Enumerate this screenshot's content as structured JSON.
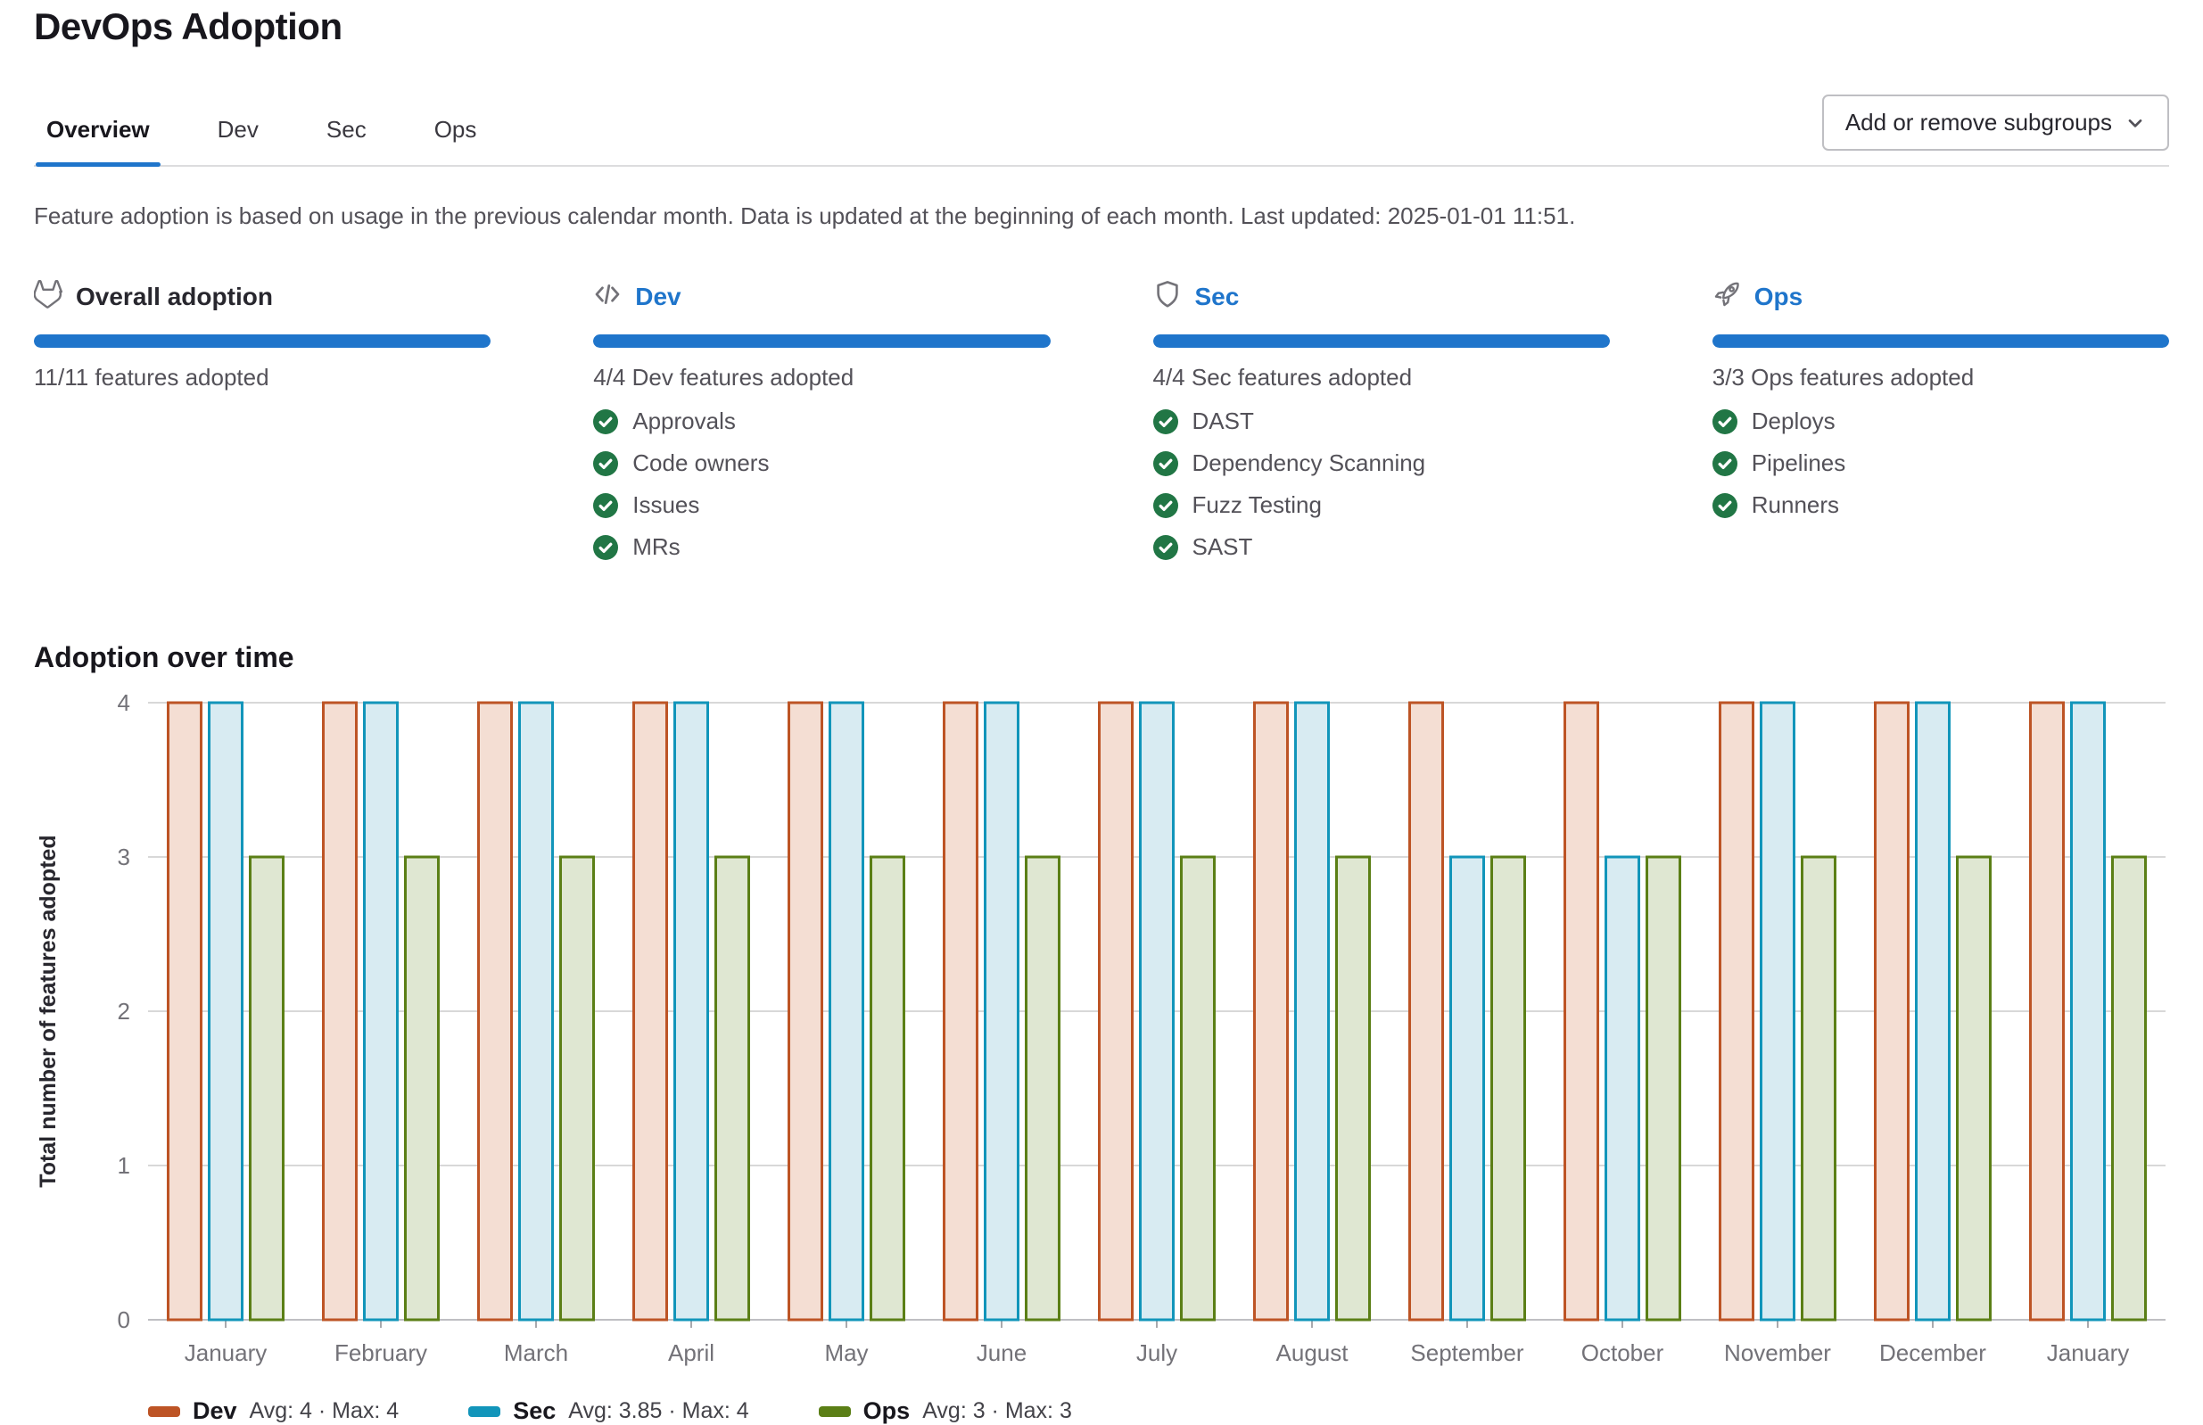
{
  "page": {
    "title": "DevOps Adoption"
  },
  "tabs": [
    {
      "label": "Overview",
      "active": true
    },
    {
      "label": "Dev",
      "active": false
    },
    {
      "label": "Sec",
      "active": false
    },
    {
      "label": "Ops",
      "active": false
    }
  ],
  "toolbar": {
    "subgroups_button": "Add or remove subgroups"
  },
  "description": "Feature adoption is based on usage in the previous calendar month. Data is updated at the beginning of each month. Last updated: 2025-01-01 11:51.",
  "adoption": {
    "columns": [
      {
        "id": "overall",
        "icon": "tanuki-icon",
        "title": "Overall adoption",
        "is_link": false,
        "progress_percent": 100,
        "summary": "11/11 features adopted",
        "features": []
      },
      {
        "id": "dev",
        "icon": "code-icon",
        "title": "Dev",
        "is_link": true,
        "progress_percent": 100,
        "summary": "4/4 Dev features adopted",
        "features": [
          "Approvals",
          "Code owners",
          "Issues",
          "MRs"
        ]
      },
      {
        "id": "sec",
        "icon": "shield-icon",
        "title": "Sec",
        "is_link": true,
        "progress_percent": 100,
        "summary": "4/4 Sec features adopted",
        "features": [
          "DAST",
          "Dependency Scanning",
          "Fuzz Testing",
          "SAST"
        ]
      },
      {
        "id": "ops",
        "icon": "rocket-icon",
        "title": "Ops",
        "is_link": true,
        "progress_percent": 100,
        "summary": "3/3 Ops features adopted",
        "features": [
          "Deploys",
          "Pipelines",
          "Runners"
        ]
      }
    ]
  },
  "chart_section": {
    "title": "Adoption over time"
  },
  "chart_data": {
    "type": "bar",
    "title": "Adoption over time",
    "categories": [
      "January",
      "February",
      "March",
      "April",
      "May",
      "June",
      "July",
      "August",
      "September",
      "October",
      "November",
      "December",
      "January"
    ],
    "series": [
      {
        "name": "Dev",
        "color": "#bd5425",
        "fill": "#f4ded3",
        "values": [
          4,
          4,
          4,
          4,
          4,
          4,
          4,
          4,
          4,
          4,
          4,
          4,
          4
        ]
      },
      {
        "name": "Sec",
        "color": "#1295ba",
        "fill": "#d8ebf2",
        "values": [
          4,
          4,
          4,
          4,
          4,
          4,
          4,
          4,
          3,
          3,
          4,
          4,
          4
        ]
      },
      {
        "name": "Ops",
        "color": "#5b7f16",
        "fill": "#dfe7d2",
        "values": [
          3,
          3,
          3,
          3,
          3,
          3,
          3,
          3,
          3,
          3,
          3,
          3,
          3
        ]
      }
    ],
    "legend": [
      {
        "name": "Dev",
        "stats": "Avg: 4 · Max: 4"
      },
      {
        "name": "Sec",
        "stats": "Avg: 3.85 · Max: 4"
      },
      {
        "name": "Ops",
        "stats": "Avg: 3 · Max: 3"
      }
    ],
    "xlabel": "",
    "ylabel": "Total number of features adopted",
    "ylim": [
      0,
      4
    ],
    "yticks": [
      0,
      1,
      2,
      3,
      4
    ],
    "grid": true,
    "legend_position": "bottom"
  },
  "colors": {
    "accent_blue": "#1f75cb",
    "progress_blue": "#1f75cb",
    "check_green": "#217645",
    "gridline": "#d8d8d8",
    "axis_line": "#bfbfc3",
    "tick_text": "#737278"
  }
}
